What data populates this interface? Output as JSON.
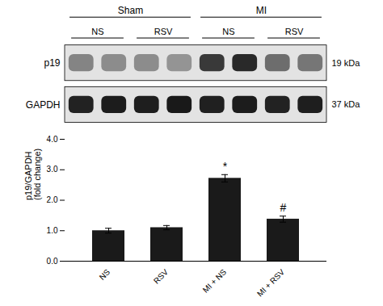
{
  "chart_data": [
    {
      "type": "blot",
      "lane_groups": [
        {
          "label": "Sham",
          "sublabels": [
            "NS",
            "RSV"
          ]
        },
        {
          "label": "MI",
          "sublabels": [
            "NS",
            "RSV"
          ]
        }
      ],
      "bands": [
        {
          "label": "p19",
          "size_label": "19 kDa",
          "intensities": [
            0.42,
            0.38,
            0.38,
            0.35,
            0.75,
            0.82,
            0.52,
            0.48
          ]
        },
        {
          "label": "GAPDH",
          "size_label": "37 kDa",
          "intensities": [
            0.85,
            0.88,
            0.87,
            0.89,
            0.86,
            0.88,
            0.85,
            0.87
          ]
        }
      ]
    },
    {
      "type": "bar",
      "categories": [
        "NS",
        "RSV",
        "MI + NS",
        "MI + RSV"
      ],
      "values": [
        1.0,
        1.1,
        2.72,
        1.38
      ],
      "errors": [
        0.08,
        0.07,
        0.12,
        0.1
      ],
      "color": "#1a1a1a",
      "ylabel": "p19/GAPDH\n(fold change)",
      "ylim": [
        0,
        4
      ],
      "yticks": [
        0,
        1,
        2,
        3,
        4
      ],
      "grid": false,
      "annotations": [
        {
          "category": "MI + NS",
          "text": "*",
          "offset": 0.15
        },
        {
          "category": "MI + RSV",
          "text": "#",
          "offset": 0.15
        }
      ]
    }
  ]
}
